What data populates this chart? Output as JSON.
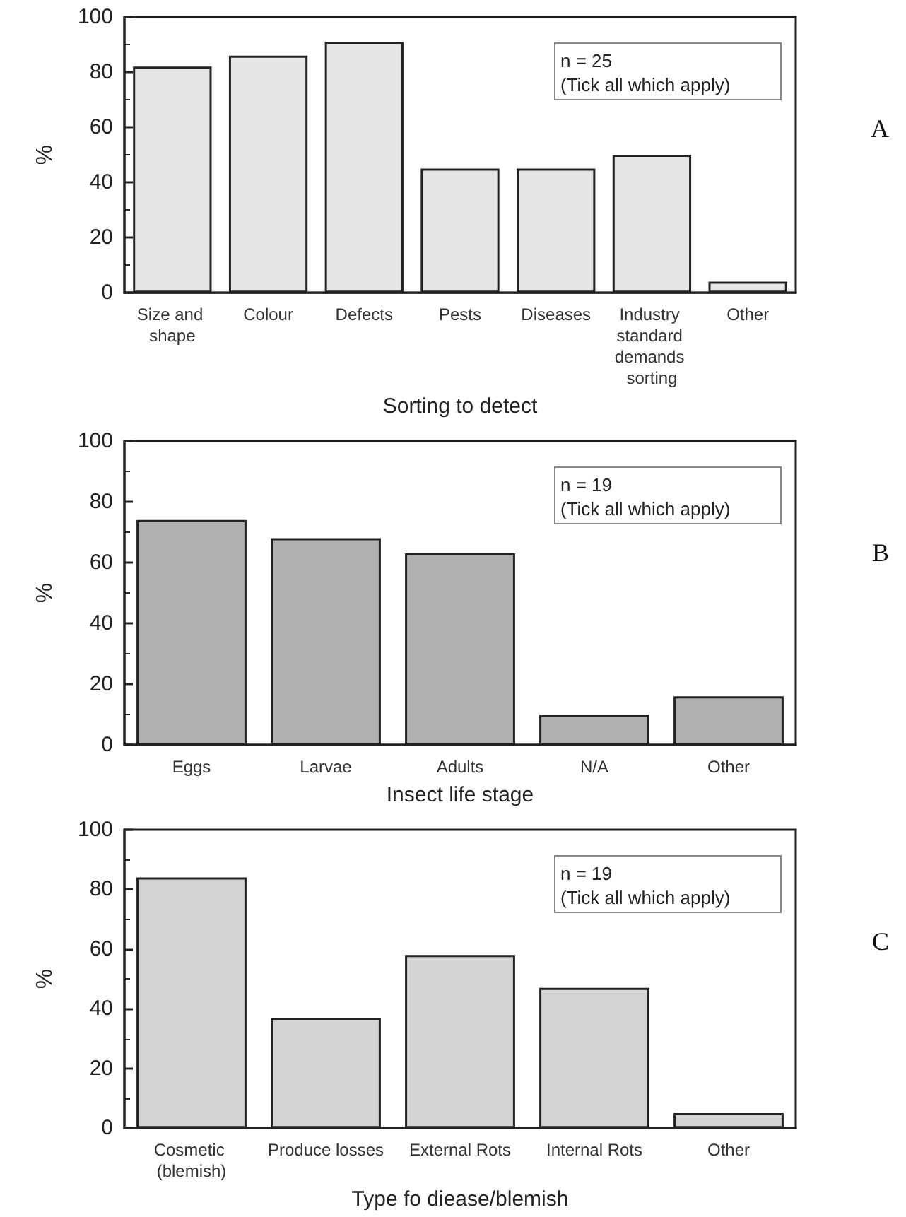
{
  "chart_data": [
    {
      "type": "bar",
      "categories": [
        "Size and shape",
        "Colour",
        "Defects",
        "Pests",
        "Diseases",
        "Industry standard demands sorting",
        "Other"
      ],
      "values": [
        82,
        86,
        91,
        45,
        45,
        50,
        4
      ],
      "color": "#e6e6e6",
      "xlabel": "Sorting to detect",
      "ylabel": "%",
      "ylim": [
        0,
        100
      ],
      "yticks": [
        0,
        20,
        40,
        60,
        80,
        100
      ],
      "grid": false,
      "annotations": [
        "n = 25",
        "(Tick all which apply)",
        "A"
      ]
    },
    {
      "type": "bar",
      "categories": [
        "Eggs",
        "Larvae",
        "Adults",
        "N/A",
        "Other"
      ],
      "values": [
        74,
        68,
        63,
        10,
        16
      ],
      "color": "#b0b0b0",
      "xlabel": "Insect life stage",
      "ylabel": "%",
      "ylim": [
        0,
        100
      ],
      "yticks": [
        0,
        20,
        40,
        60,
        80,
        100
      ],
      "grid": false,
      "annotations": [
        "n = 19",
        "(Tick all which apply)",
        "B"
      ]
    },
    {
      "type": "bar",
      "categories": [
        "Cosmetic (blemish)",
        "Produce losses",
        "External Rots",
        "Internal Rots",
        "Other"
      ],
      "values": [
        84,
        37,
        58,
        47,
        5
      ],
      "color": "#d4d4d4",
      "xlabel": "Type fo diease/blemish",
      "ylabel": "%",
      "ylim": [
        0,
        100
      ],
      "yticks": [
        0,
        20,
        40,
        60,
        80,
        100
      ],
      "grid": false,
      "annotations": [
        "n = 19",
        "(Tick all which apply)",
        "C"
      ]
    }
  ]
}
